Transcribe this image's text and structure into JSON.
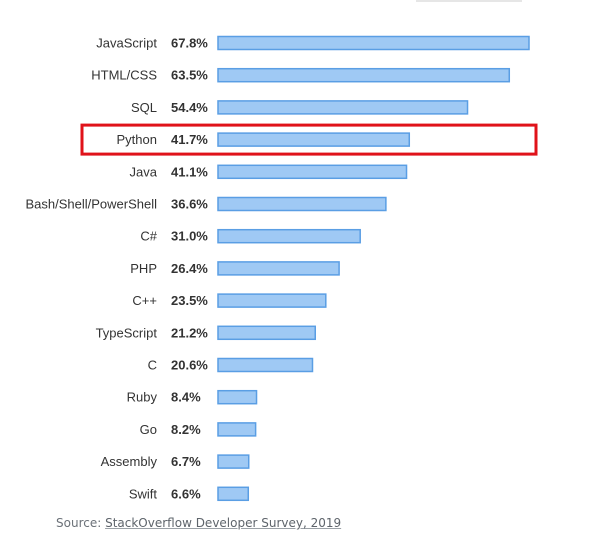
{
  "chart_data": {
    "type": "bar",
    "orientation": "horizontal",
    "categories": [
      "JavaScript",
      "HTML/CSS",
      "SQL",
      "Python",
      "Java",
      "Bash/Shell/PowerShell",
      "C#",
      "PHP",
      "C++",
      "TypeScript",
      "C",
      "Ruby",
      "Go",
      "Assembly",
      "Swift"
    ],
    "values": [
      67.8,
      63.5,
      54.4,
      41.7,
      41.1,
      36.6,
      31.0,
      26.4,
      23.5,
      21.2,
      20.6,
      8.4,
      8.2,
      6.7,
      6.6
    ],
    "value_labels": [
      "67.8%",
      "63.5%",
      "54.4%",
      "41.7%",
      "41.1%",
      "36.6%",
      "31.0%",
      "26.4%",
      "23.5%",
      "21.2%",
      "20.6%",
      "8.4%",
      "8.2%",
      "6.7%",
      "6.6%"
    ],
    "xlim": [
      0,
      67.8
    ],
    "grid": false,
    "highlighted_category": "Python",
    "colors": {
      "bar_fill": "#9fc9f4",
      "bar_stroke": "#5a9ee4",
      "highlight_box": "#e0121a"
    }
  },
  "source": {
    "prefix": "Source: ",
    "link_text": "StackOverflow Developer Survey, 2019"
  }
}
